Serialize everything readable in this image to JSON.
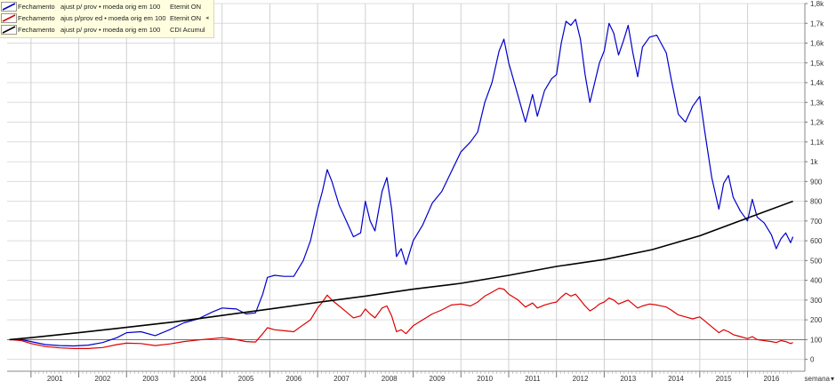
{
  "legend": [
    {
      "col1": "Fechamento",
      "col2": "ajust p/ prov • moeda orig em 100",
      "col3": "Eternit ON",
      "color": "#0000cc",
      "marker": ""
    },
    {
      "col1": "Fechamento",
      "col2": "ajus p/prov ed • moeda orig em 100",
      "col3": "Eternit ON",
      "color": "#dd0000",
      "marker": "◂"
    },
    {
      "col1": "Fechamento",
      "col2": "ajust p/ prov • moeda orig em 100",
      "col3": "CDI Acumul",
      "color": "#000000",
      "marker": ""
    }
  ],
  "controls": {
    "period_label": "semana"
  },
  "chart_data": {
    "type": "line",
    "xlabel": "",
    "ylabel": "",
    "xlim": [
      2000.5,
      2017.2
    ],
    "ylim": [
      -60,
      1800
    ],
    "x_ticks": [
      "2001",
      "2002",
      "2003",
      "2004",
      "2005",
      "2006",
      "2007",
      "2008",
      "2009",
      "2010",
      "2011",
      "2012",
      "2013",
      "2014",
      "2015",
      "2016"
    ],
    "y_ticks": [
      "0",
      "100",
      "200",
      "300",
      "400",
      "500",
      "600",
      "700",
      "800",
      "900",
      "1k",
      "1,1k",
      "1,2k",
      "1,3k",
      "1,4k",
      "1,5k",
      "1,6k",
      "1,7k",
      "1,8k"
    ],
    "y_tick_values": [
      0,
      100,
      200,
      300,
      400,
      500,
      600,
      700,
      800,
      900,
      1000,
      1100,
      1200,
      1300,
      1400,
      1500,
      1600,
      1700,
      1800
    ],
    "reference_line": 100,
    "grid": true,
    "legend_position": "top-left",
    "series": [
      {
        "name": "Eternit ON",
        "color": "#0000cc",
        "points": [
          [
            2000.55,
            100
          ],
          [
            2000.8,
            100
          ],
          [
            2001.0,
            90
          ],
          [
            2001.3,
            75
          ],
          [
            2001.6,
            70
          ],
          [
            2001.9,
            68
          ],
          [
            2002.2,
            72
          ],
          [
            2002.5,
            85
          ],
          [
            2002.8,
            110
          ],
          [
            2003.0,
            135
          ],
          [
            2003.3,
            140
          ],
          [
            2003.6,
            120
          ],
          [
            2003.9,
            150
          ],
          [
            2004.2,
            185
          ],
          [
            2004.5,
            205
          ],
          [
            2004.8,
            240
          ],
          [
            2005.0,
            260
          ],
          [
            2005.3,
            255
          ],
          [
            2005.5,
            230
          ],
          [
            2005.7,
            235
          ],
          [
            2005.85,
            330
          ],
          [
            2005.95,
            415
          ],
          [
            2006.1,
            425
          ],
          [
            2006.3,
            420
          ],
          [
            2006.5,
            420
          ],
          [
            2006.7,
            500
          ],
          [
            2006.85,
            600
          ],
          [
            2007.0,
            760
          ],
          [
            2007.1,
            850
          ],
          [
            2007.2,
            960
          ],
          [
            2007.3,
            900
          ],
          [
            2007.45,
            780
          ],
          [
            2007.6,
            700
          ],
          [
            2007.75,
            620
          ],
          [
            2007.9,
            640
          ],
          [
            2008.0,
            800
          ],
          [
            2008.1,
            700
          ],
          [
            2008.2,
            650
          ],
          [
            2008.35,
            850
          ],
          [
            2008.45,
            920
          ],
          [
            2008.55,
            760
          ],
          [
            2008.65,
            520
          ],
          [
            2008.75,
            560
          ],
          [
            2008.85,
            480
          ],
          [
            2009.0,
            600
          ],
          [
            2009.2,
            680
          ],
          [
            2009.4,
            790
          ],
          [
            2009.6,
            850
          ],
          [
            2009.8,
            950
          ],
          [
            2010.0,
            1050
          ],
          [
            2010.2,
            1100
          ],
          [
            2010.35,
            1150
          ],
          [
            2010.5,
            1300
          ],
          [
            2010.65,
            1400
          ],
          [
            2010.8,
            1560
          ],
          [
            2010.9,
            1620
          ],
          [
            2011.0,
            1500
          ],
          [
            2011.2,
            1330
          ],
          [
            2011.35,
            1200
          ],
          [
            2011.5,
            1340
          ],
          [
            2011.6,
            1230
          ],
          [
            2011.75,
            1360
          ],
          [
            2011.9,
            1420
          ],
          [
            2012.0,
            1440
          ],
          [
            2012.1,
            1600
          ],
          [
            2012.2,
            1710
          ],
          [
            2012.3,
            1690
          ],
          [
            2012.4,
            1720
          ],
          [
            2012.5,
            1620
          ],
          [
            2012.6,
            1440
          ],
          [
            2012.7,
            1300
          ],
          [
            2012.8,
            1400
          ],
          [
            2012.9,
            1500
          ],
          [
            2013.0,
            1560
          ],
          [
            2013.1,
            1700
          ],
          [
            2013.2,
            1650
          ],
          [
            2013.3,
            1540
          ],
          [
            2013.4,
            1610
          ],
          [
            2013.5,
            1690
          ],
          [
            2013.6,
            1550
          ],
          [
            2013.7,
            1430
          ],
          [
            2013.8,
            1580
          ],
          [
            2013.95,
            1630
          ],
          [
            2014.1,
            1640
          ],
          [
            2014.3,
            1550
          ],
          [
            2014.4,
            1420
          ],
          [
            2014.55,
            1240
          ],
          [
            2014.7,
            1200
          ],
          [
            2014.85,
            1280
          ],
          [
            2015.0,
            1330
          ],
          [
            2015.1,
            1160
          ],
          [
            2015.25,
            920
          ],
          [
            2015.4,
            760
          ],
          [
            2015.5,
            890
          ],
          [
            2015.6,
            930
          ],
          [
            2015.7,
            820
          ],
          [
            2015.85,
            750
          ],
          [
            2016.0,
            700
          ],
          [
            2016.1,
            810
          ],
          [
            2016.2,
            720
          ],
          [
            2016.35,
            690
          ],
          [
            2016.5,
            630
          ],
          [
            2016.6,
            560
          ],
          [
            2016.7,
            610
          ],
          [
            2016.8,
            640
          ],
          [
            2016.9,
            590
          ],
          [
            2016.95,
            620
          ]
        ]
      },
      {
        "name": "Eternit ON",
        "color": "#dd0000",
        "points": [
          [
            2000.55,
            100
          ],
          [
            2000.8,
            95
          ],
          [
            2001.0,
            80
          ],
          [
            2001.3,
            65
          ],
          [
            2001.6,
            58
          ],
          [
            2001.9,
            55
          ],
          [
            2002.2,
            55
          ],
          [
            2002.5,
            60
          ],
          [
            2002.8,
            75
          ],
          [
            2003.0,
            82
          ],
          [
            2003.3,
            80
          ],
          [
            2003.6,
            70
          ],
          [
            2003.9,
            78
          ],
          [
            2004.2,
            90
          ],
          [
            2004.5,
            98
          ],
          [
            2004.8,
            105
          ],
          [
            2005.0,
            110
          ],
          [
            2005.3,
            100
          ],
          [
            2005.5,
            90
          ],
          [
            2005.7,
            88
          ],
          [
            2005.85,
            130
          ],
          [
            2005.95,
            160
          ],
          [
            2006.1,
            150
          ],
          [
            2006.3,
            145
          ],
          [
            2006.5,
            140
          ],
          [
            2006.7,
            175
          ],
          [
            2006.85,
            200
          ],
          [
            2007.0,
            260
          ],
          [
            2007.1,
            290
          ],
          [
            2007.2,
            325
          ],
          [
            2007.3,
            300
          ],
          [
            2007.45,
            270
          ],
          [
            2007.6,
            240
          ],
          [
            2007.75,
            210
          ],
          [
            2007.9,
            220
          ],
          [
            2008.0,
            255
          ],
          [
            2008.1,
            230
          ],
          [
            2008.2,
            210
          ],
          [
            2008.35,
            260
          ],
          [
            2008.45,
            270
          ],
          [
            2008.55,
            220
          ],
          [
            2008.65,
            140
          ],
          [
            2008.75,
            150
          ],
          [
            2008.85,
            130
          ],
          [
            2009.0,
            170
          ],
          [
            2009.2,
            200
          ],
          [
            2009.4,
            230
          ],
          [
            2009.6,
            250
          ],
          [
            2009.8,
            275
          ],
          [
            2010.0,
            280
          ],
          [
            2010.2,
            270
          ],
          [
            2010.35,
            290
          ],
          [
            2010.5,
            320
          ],
          [
            2010.65,
            340
          ],
          [
            2010.8,
            360
          ],
          [
            2010.9,
            355
          ],
          [
            2011.0,
            330
          ],
          [
            2011.2,
            300
          ],
          [
            2011.35,
            265
          ],
          [
            2011.5,
            285
          ],
          [
            2011.6,
            260
          ],
          [
            2011.75,
            275
          ],
          [
            2011.9,
            285
          ],
          [
            2012.0,
            290
          ],
          [
            2012.1,
            315
          ],
          [
            2012.2,
            335
          ],
          [
            2012.3,
            320
          ],
          [
            2012.4,
            330
          ],
          [
            2012.5,
            300
          ],
          [
            2012.6,
            270
          ],
          [
            2012.7,
            245
          ],
          [
            2012.8,
            260
          ],
          [
            2012.9,
            280
          ],
          [
            2013.0,
            290
          ],
          [
            2013.1,
            310
          ],
          [
            2013.2,
            300
          ],
          [
            2013.3,
            280
          ],
          [
            2013.4,
            290
          ],
          [
            2013.5,
            300
          ],
          [
            2013.6,
            280
          ],
          [
            2013.7,
            260
          ],
          [
            2013.8,
            270
          ],
          [
            2013.95,
            280
          ],
          [
            2014.1,
            275
          ],
          [
            2014.3,
            265
          ],
          [
            2014.4,
            250
          ],
          [
            2014.55,
            225
          ],
          [
            2014.7,
            215
          ],
          [
            2014.85,
            205
          ],
          [
            2015.0,
            215
          ],
          [
            2015.1,
            195
          ],
          [
            2015.25,
            165
          ],
          [
            2015.4,
            135
          ],
          [
            2015.5,
            150
          ],
          [
            2015.6,
            140
          ],
          [
            2015.7,
            125
          ],
          [
            2015.85,
            115
          ],
          [
            2016.0,
            105
          ],
          [
            2016.1,
            115
          ],
          [
            2016.2,
            100
          ],
          [
            2016.35,
            95
          ],
          [
            2016.5,
            90
          ],
          [
            2016.6,
            85
          ],
          [
            2016.7,
            95
          ],
          [
            2016.8,
            90
          ],
          [
            2016.9,
            80
          ],
          [
            2016.95,
            85
          ]
        ]
      },
      {
        "name": "CDI Acumul",
        "color": "#000000",
        "points": [
          [
            2000.55,
            100
          ],
          [
            2001.0,
            110
          ],
          [
            2002.0,
            135
          ],
          [
            2003.0,
            162
          ],
          [
            2004.0,
            190
          ],
          [
            2005.0,
            222
          ],
          [
            2006.0,
            255
          ],
          [
            2007.0,
            288
          ],
          [
            2008.0,
            320
          ],
          [
            2009.0,
            355
          ],
          [
            2010.0,
            385
          ],
          [
            2011.0,
            425
          ],
          [
            2012.0,
            470
          ],
          [
            2013.0,
            505
          ],
          [
            2014.0,
            555
          ],
          [
            2015.0,
            625
          ],
          [
            2016.0,
            715
          ],
          [
            2016.95,
            800
          ]
        ]
      }
    ]
  }
}
